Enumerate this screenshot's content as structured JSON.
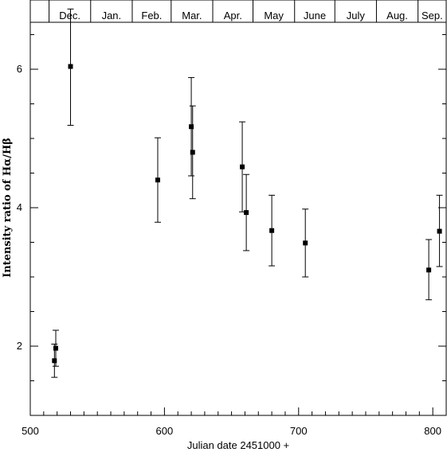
{
  "chart_data": {
    "type": "scatter",
    "title": "",
    "xlabel": "Julian date 2451000 +",
    "ylabel": "Intensity ratio of Hα/Hβ",
    "xlim": [
      500,
      810
    ],
    "ylim": [
      1.0,
      7.0
    ],
    "x_ticks": [
      500,
      600,
      700,
      800
    ],
    "x_tick_labels": [
      "500",
      "600",
      "700",
      "800"
    ],
    "y_ticks": [
      2,
      4,
      6
    ],
    "y_tick_labels": [
      "2",
      "4",
      "6"
    ],
    "grid": false,
    "months": [
      {
        "label": "Dec.",
        "start": 514,
        "end": 545
      },
      {
        "label": "Jan.",
        "start": 545,
        "end": 576
      },
      {
        "label": "Feb.",
        "start": 576,
        "end": 605
      },
      {
        "label": "Mar.",
        "start": 605,
        "end": 636
      },
      {
        "label": "Apr.",
        "start": 636,
        "end": 666
      },
      {
        "label": "May",
        "start": 666,
        "end": 697
      },
      {
        "label": "June",
        "start": 697,
        "end": 727
      },
      {
        "label": "July",
        "start": 727,
        "end": 758
      },
      {
        "label": "Aug.",
        "start": 758,
        "end": 789
      },
      {
        "label": "Sep.",
        "start": 789,
        "end": 810
      }
    ],
    "points": [
      {
        "x": 518,
        "y": 1.79,
        "err_low": 1.55,
        "err_high": 2.03
      },
      {
        "x": 519,
        "y": 1.97,
        "err_low": 1.71,
        "err_high": 2.23
      },
      {
        "x": 530,
        "y": 6.04,
        "err_low": 5.19,
        "err_high": 6.87
      },
      {
        "x": 595,
        "y": 4.4,
        "err_low": 3.79,
        "err_high": 5.01
      },
      {
        "x": 620,
        "y": 5.17,
        "err_low": 4.46,
        "err_high": 5.88
      },
      {
        "x": 621,
        "y": 4.8,
        "err_low": 4.13,
        "err_high": 5.47
      },
      {
        "x": 658,
        "y": 4.59,
        "err_low": 3.94,
        "err_high": 5.24
      },
      {
        "x": 661,
        "y": 3.93,
        "err_low": 3.38,
        "err_high": 4.48
      },
      {
        "x": 680,
        "y": 3.67,
        "err_low": 3.16,
        "err_high": 4.18
      },
      {
        "x": 705,
        "y": 3.49,
        "err_low": 3.0,
        "err_high": 3.98
      },
      {
        "x": 797,
        "y": 3.1,
        "err_low": 2.67,
        "err_high": 3.54
      },
      {
        "x": 805,
        "y": 3.66,
        "err_low": 3.15,
        "err_high": 4.18
      }
    ]
  }
}
